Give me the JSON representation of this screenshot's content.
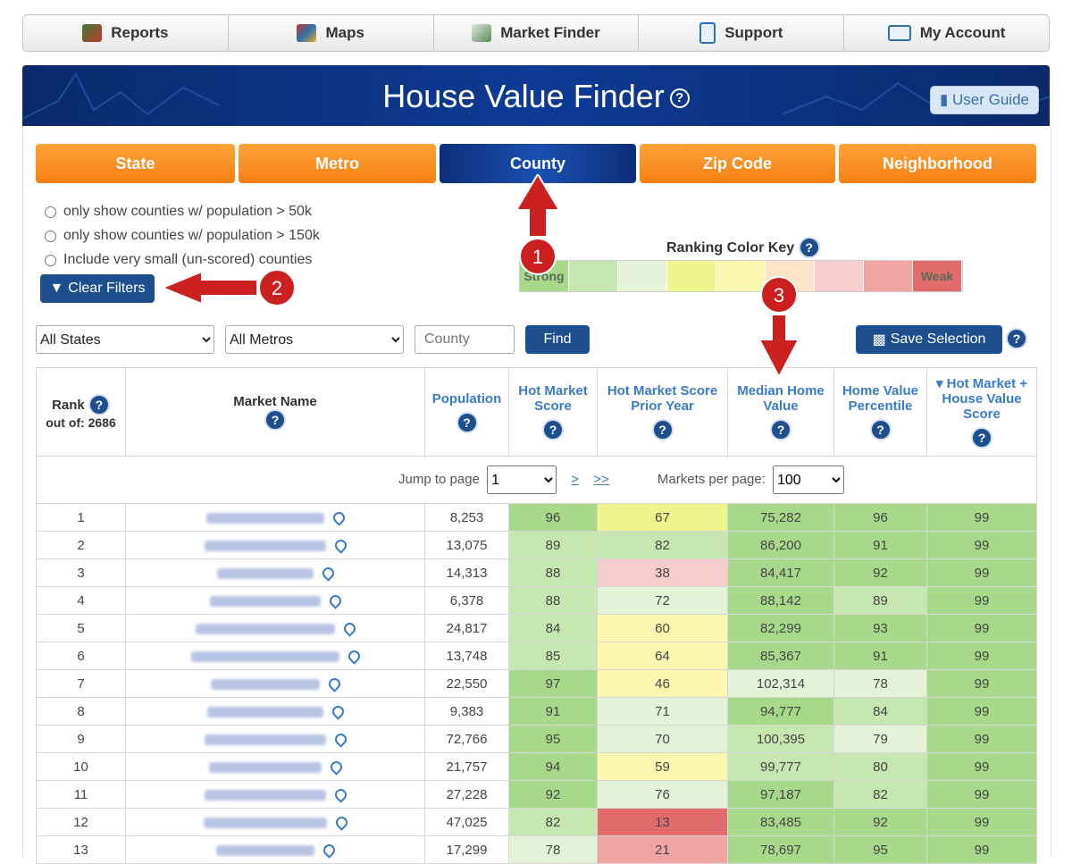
{
  "nav": [
    {
      "label": "Reports",
      "icon": "reports-icon",
      "color": "#3c7a3c"
    },
    {
      "label": "Maps",
      "icon": "us-map-icon",
      "color": "#c0392b"
    },
    {
      "label": "Market Finder",
      "icon": "market-finder-icon",
      "color": "#5a8a5a"
    },
    {
      "label": "Support",
      "icon": "phone-icon",
      "color": "#2f6fae"
    },
    {
      "label": "My Account",
      "icon": "account-card-icon",
      "color": "#2f6fae"
    }
  ],
  "header": {
    "title": "House Value Finder",
    "help": "?",
    "user_guide": "User Guide"
  },
  "tabs": [
    {
      "label": "State",
      "active": false
    },
    {
      "label": "Metro",
      "active": false
    },
    {
      "label": "County",
      "active": true
    },
    {
      "label": "Zip Code",
      "active": false
    },
    {
      "label": "Neighborhood",
      "active": false
    }
  ],
  "filters": {
    "options": [
      "only show counties w/ population > 50k",
      "only show counties w/ population > 150k",
      "Include very small (un-scored) counties"
    ],
    "clear_label": "Clear Filters"
  },
  "color_key": {
    "title": "Ranking Color Key",
    "strong": "Strong",
    "weak": "Weak",
    "colors": [
      "#a8d98a",
      "#c6e7b0",
      "#e4f2d8",
      "#eef58c",
      "#fbf7b0",
      "#fde3c8",
      "#f6cccc",
      "#f0a5a5",
      "#e26c6c"
    ]
  },
  "search": {
    "state_select": "All States",
    "metro_select": "All Metros",
    "county_placeholder": "County",
    "find_label": "Find",
    "save_label": "Save Selection"
  },
  "table": {
    "headers": {
      "rank": "Rank",
      "rank_sub": "out of: 2686",
      "market": "Market Name",
      "population": "Population",
      "hot": "Hot Market Score",
      "hot_prior": "Hot Market Score Prior Year",
      "median": "Median Home Value",
      "percentile": "Home Value Percentile",
      "combined": "▾ Hot Market + House Value Score"
    },
    "pager": {
      "jump_label": "Jump to page",
      "page": "1",
      "next": ">",
      "last": ">>",
      "per_page_label": "Markets per page:",
      "per_page": "100"
    },
    "rows": [
      {
        "rank": "1",
        "population": "8,253",
        "hot": "96",
        "prior": "67",
        "median": "75,282",
        "pct": "96",
        "score": "99"
      },
      {
        "rank": "2",
        "population": "13,075",
        "hot": "89",
        "prior": "82",
        "median": "86,200",
        "pct": "91",
        "score": "99"
      },
      {
        "rank": "3",
        "population": "14,313",
        "hot": "88",
        "prior": "38",
        "median": "84,417",
        "pct": "92",
        "score": "99"
      },
      {
        "rank": "4",
        "population": "6,378",
        "hot": "88",
        "prior": "72",
        "median": "88,142",
        "pct": "89",
        "score": "99"
      },
      {
        "rank": "5",
        "population": "24,817",
        "hot": "84",
        "prior": "60",
        "median": "82,299",
        "pct": "93",
        "score": "99"
      },
      {
        "rank": "6",
        "population": "13,748",
        "hot": "85",
        "prior": "64",
        "median": "85,367",
        "pct": "91",
        "score": "99"
      },
      {
        "rank": "7",
        "population": "22,550",
        "hot": "97",
        "prior": "46",
        "median": "102,314",
        "pct": "78",
        "score": "99"
      },
      {
        "rank": "8",
        "population": "9,383",
        "hot": "91",
        "prior": "71",
        "median": "94,777",
        "pct": "84",
        "score": "99"
      },
      {
        "rank": "9",
        "population": "72,766",
        "hot": "95",
        "prior": "70",
        "median": "100,395",
        "pct": "79",
        "score": "99"
      },
      {
        "rank": "10",
        "population": "21,757",
        "hot": "94",
        "prior": "59",
        "median": "99,777",
        "pct": "80",
        "score": "99"
      },
      {
        "rank": "11",
        "population": "27,228",
        "hot": "92",
        "prior": "76",
        "median": "97,187",
        "pct": "82",
        "score": "99"
      },
      {
        "rank": "12",
        "population": "47,025",
        "hot": "82",
        "prior": "13",
        "median": "83,485",
        "pct": "92",
        "score": "99"
      },
      {
        "rank": "13",
        "population": "17,299",
        "hot": "78",
        "prior": "21",
        "median": "78,697",
        "pct": "95",
        "score": "99"
      }
    ]
  },
  "annotations": {
    "a1": "1",
    "a2": "2",
    "a3": "3",
    "color": "#cc1f1f"
  }
}
